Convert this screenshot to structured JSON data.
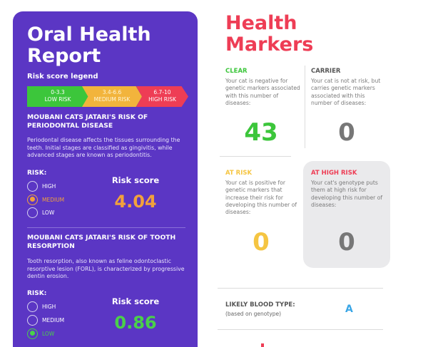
{
  "report": {
    "title": "Oral Health Report",
    "legend_label": "Risk score legend",
    "legend": [
      {
        "range": "0-3.3",
        "label": "LOW RISK",
        "color": "#3cc63b"
      },
      {
        "range": "3.4-6.6",
        "label": "MEDIUM RISK",
        "color": "#f2b43c"
      },
      {
        "range": "6.7-10",
        "label": "HIGH RISK",
        "color": "#ee3d55"
      }
    ],
    "sections": [
      {
        "title": "MOUBANI CATS JATARI'S RISK OF PERIODONTAL DISEASE",
        "body": "Periodontal disease affects the tissues surrounding the teeth. Initial stages are classified as gingivitis, while advanced stages are known as periodontitis.",
        "risk_label": "RISK:",
        "options": [
          "HIGH",
          "MEDIUM",
          "LOW"
        ],
        "selected": "MEDIUM",
        "score_label": "Risk score",
        "score": "4.04"
      },
      {
        "title": "MOUBANI CATS JATARI'S RISK OF TOOTH RESORPTION",
        "body": "Tooth resorption, also known as feline odontoclastic resorptive lesion (FORL), is characterized by progressive dentin erosion.",
        "risk_label": "RISK:",
        "options": [
          "HIGH",
          "MEDIUM",
          "LOW"
        ],
        "selected": "LOW",
        "score_label": "Risk score",
        "score": "0.86"
      }
    ]
  },
  "markers": {
    "title": "Health Markers",
    "clear": {
      "label": "CLEAR",
      "desc": "Your cat is negative for genetic markers associated with this number of diseases:",
      "count": "43",
      "color": "#3cc63b"
    },
    "carrier": {
      "label": "CARRIER",
      "desc": "Your cat is not at risk, but carries genetic markers associated with this number of diseases:",
      "count": "0",
      "color": "#777777"
    },
    "at_risk": {
      "label": "AT RISK",
      "desc": "Your cat is positive for genetic markers that increase their risk for developing this number of diseases:",
      "count": "0",
      "color": "#f5c542"
    },
    "high_risk": {
      "label": "AT HIGH RISK",
      "desc": "Your cat's genotype puts them at high risk for developing this number of diseases:",
      "count": "0",
      "color": "#ee3d55"
    }
  },
  "blood_type": {
    "label": "LIKELY BLOOD TYPE:",
    "sub": "(based on genotype)",
    "value": "A"
  }
}
